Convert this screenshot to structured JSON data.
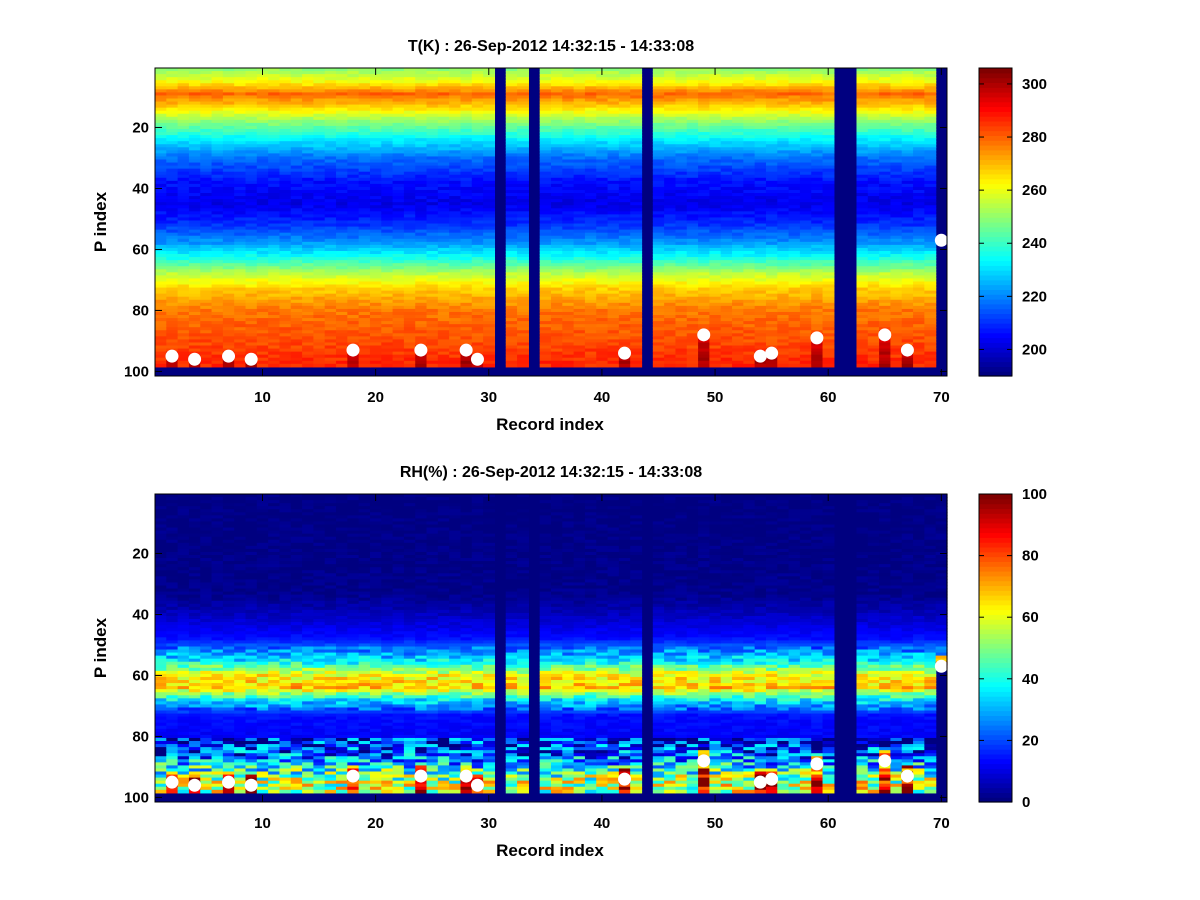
{
  "chart_data": [
    {
      "type": "heatmap",
      "title": "T(K) : 26-Sep-2012 14:32:15 - 14:33:08",
      "xlabel": "Record index",
      "ylabel": "P index",
      "xlim": [
        0.5,
        70.5
      ],
      "ylim": [
        0.5,
        101.5
      ],
      "y_reversed": true,
      "xticks": [
        10,
        20,
        30,
        40,
        50,
        60,
        70
      ],
      "yticks": [
        20,
        40,
        60,
        80,
        100
      ],
      "colormap": "jet",
      "colorbar": {
        "range": [
          190,
          306
        ],
        "ticks": [
          200,
          220,
          240,
          260,
          280,
          300
        ]
      },
      "missing_records": [
        31,
        34,
        44,
        61,
        62
      ],
      "profile_min": [
        {
          "p": 1,
          "value": 250
        },
        {
          "p": 5,
          "value": 262
        },
        {
          "p": 9,
          "value": 280
        },
        {
          "p": 13,
          "value": 268
        },
        {
          "p": 18,
          "value": 250
        },
        {
          "p": 24,
          "value": 232
        },
        {
          "p": 30,
          "value": 217
        },
        {
          "p": 38,
          "value": 206
        },
        {
          "p": 45,
          "value": 202
        },
        {
          "p": 52,
          "value": 210
        },
        {
          "p": 58,
          "value": 222
        },
        {
          "p": 63,
          "value": 237
        },
        {
          "p": 68,
          "value": 255
        },
        {
          "p": 73,
          "value": 268
        },
        {
          "p": 80,
          "value": 278
        },
        {
          "p": 90,
          "value": 283
        },
        {
          "p": 97,
          "value": 287
        }
      ],
      "surface_markers": [
        {
          "record": 2,
          "p": 95
        },
        {
          "record": 4,
          "p": 96
        },
        {
          "record": 7,
          "p": 95
        },
        {
          "record": 9,
          "p": 96
        },
        {
          "record": 18,
          "p": 93
        },
        {
          "record": 24,
          "p": 93
        },
        {
          "record": 28,
          "p": 93
        },
        {
          "record": 29,
          "p": 96
        },
        {
          "record": 42,
          "p": 94
        },
        {
          "record": 49,
          "p": 88
        },
        {
          "record": 54,
          "p": 95
        },
        {
          "record": 55,
          "p": 94
        },
        {
          "record": 59,
          "p": 89
        },
        {
          "record": 65,
          "p": 88
        },
        {
          "record": 67,
          "p": 93
        },
        {
          "record": 70,
          "p": 57
        }
      ]
    },
    {
      "type": "heatmap",
      "title": "RH(%) : 26-Sep-2012 14:32:15 - 14:33:08",
      "xlabel": "Record index",
      "ylabel": "P index",
      "xlim": [
        0.5,
        70.5
      ],
      "ylim": [
        0.5,
        101.5
      ],
      "y_reversed": true,
      "xticks": [
        10,
        20,
        30,
        40,
        50,
        60,
        70
      ],
      "yticks": [
        20,
        40,
        60,
        80,
        100
      ],
      "colormap": "jet",
      "colorbar": {
        "range": [
          0,
          100
        ],
        "ticks": [
          0,
          20,
          40,
          60,
          80,
          100
        ]
      },
      "missing_records": [
        31,
        34,
        44,
        61,
        62
      ],
      "profile_min": [
        {
          "p": 1,
          "value": 0
        },
        {
          "p": 33,
          "value": 1
        },
        {
          "p": 40,
          "value": 6
        },
        {
          "p": 48,
          "value": 14
        },
        {
          "p": 55,
          "value": 35
        },
        {
          "p": 60,
          "value": 62
        },
        {
          "p": 64,
          "value": 68
        },
        {
          "p": 68,
          "value": 36
        },
        {
          "p": 73,
          "value": 14
        },
        {
          "p": 80,
          "value": 12
        },
        {
          "p": 86,
          "value": 20
        },
        {
          "p": 91,
          "value": 42
        },
        {
          "p": 95,
          "value": 55
        },
        {
          "p": 98,
          "value": 55
        }
      ],
      "surface_markers": [
        {
          "record": 2,
          "p": 95
        },
        {
          "record": 4,
          "p": 96
        },
        {
          "record": 7,
          "p": 95
        },
        {
          "record": 9,
          "p": 96
        },
        {
          "record": 18,
          "p": 93
        },
        {
          "record": 24,
          "p": 93
        },
        {
          "record": 28,
          "p": 93
        },
        {
          "record": 29,
          "p": 96
        },
        {
          "record": 42,
          "p": 94
        },
        {
          "record": 49,
          "p": 88
        },
        {
          "record": 54,
          "p": 95
        },
        {
          "record": 55,
          "p": 94
        },
        {
          "record": 59,
          "p": 89
        },
        {
          "record": 65,
          "p": 88
        },
        {
          "record": 67,
          "p": 93
        },
        {
          "record": 70,
          "p": 57
        }
      ]
    }
  ]
}
